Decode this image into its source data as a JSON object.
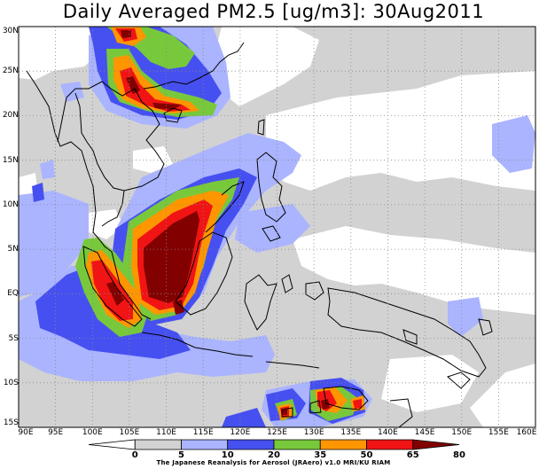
{
  "title": "Daily Averaged PM2.5 [ug/m3]: 30Aug2011",
  "map_extent": {
    "lon_min": 90,
    "lon_max": 160,
    "lat_min": -15,
    "lat_max": 30
  },
  "x_ticks": [
    "90E",
    "95E",
    "100E",
    "105E",
    "110E",
    "115E",
    "120E",
    "125E",
    "130E",
    "135E",
    "140E",
    "145E",
    "150E",
    "155E",
    "160E"
  ],
  "y_ticks": [
    "30N",
    "25N",
    "20N",
    "15N",
    "10N",
    "5N",
    "EQ",
    "5S",
    "10S",
    "15S"
  ],
  "colorbar": {
    "levels": [
      "0",
      "5",
      "10",
      "20",
      "35",
      "50",
      "65",
      "80"
    ],
    "colors": [
      "#ffffff",
      "#d2d2d2",
      "#aab4ff",
      "#4650f0",
      "#78c83c",
      "#ff9600",
      "#f01414",
      "#820000"
    ]
  },
  "credit": "The Japanese Reanalysis for Aerosol (JRAero) v1.0 MRI/KU RIAM"
}
